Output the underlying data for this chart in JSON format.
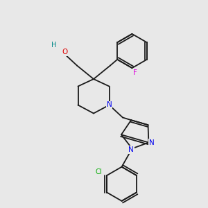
{
  "bg_color": "#e8e8e8",
  "bond_color": "#1a1a1a",
  "atom_colors": {
    "N": "#0000ee",
    "O": "#dd0000",
    "F": "#dd00dd",
    "Cl": "#00aa00",
    "H": "#008888",
    "C": "#1a1a1a"
  },
  "figsize": [
    3.0,
    3.0
  ],
  "dpi": 100,
  "lw": 1.3
}
